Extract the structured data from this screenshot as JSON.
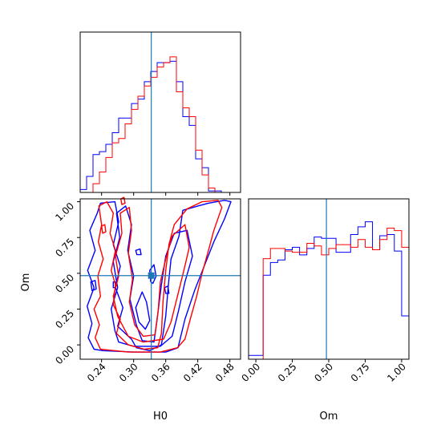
{
  "chart_data": {
    "type": "corner",
    "parameters": [
      "H0",
      "Om"
    ],
    "truth": {
      "H0": 0.333,
      "Om": 0.484
    },
    "colors": {
      "series_a": "#0000ff",
      "series_b": "#ff0000",
      "truth": "#1f77b4",
      "axes": "#000000"
    },
    "series": [
      {
        "color": "#0000ff",
        "hist_H0": {
          "edges": [
            0.2,
            0.212,
            0.224,
            0.236,
            0.248,
            0.26,
            0.272,
            0.284,
            0.296,
            0.308,
            0.32,
            0.332,
            0.344,
            0.356,
            0.368,
            0.38,
            0.392,
            0.404,
            0.416,
            0.428,
            0.44,
            0.452,
            0.464,
            0.476,
            0.488
          ],
          "counts": [
            2,
            11,
            26,
            28,
            33,
            41,
            51,
            51,
            61,
            64,
            76,
            83,
            89,
            89,
            90,
            76,
            52,
            46,
            23,
            17,
            1,
            1,
            0,
            0
          ]
        },
        "hist_Om": {
          "edges": [
            -0.05,
            0.0,
            0.05,
            0.1,
            0.15,
            0.2,
            0.25,
            0.3,
            0.35,
            0.4,
            0.45,
            0.5,
            0.55,
            0.6,
            0.65,
            0.7,
            0.75,
            0.8,
            0.85,
            0.9,
            0.95,
            1.0,
            1.05
          ],
          "counts": [
            3,
            3,
            66,
            76,
            78,
            86,
            88,
            82,
            87,
            96,
            95,
            95,
            84,
            84,
            98,
            104,
            108,
            86,
            97,
            98,
            85,
            34,
            0
          ]
        },
        "contours": [
          [
            [
              0.242,
              -0.04
            ],
            [
              0.226,
              -0.03
            ],
            [
              0.215,
              0.05
            ],
            [
              0.222,
              0.15
            ],
            [
              0.213,
              0.27
            ],
            [
              0.226,
              0.4
            ],
            [
              0.214,
              0.52
            ],
            [
              0.228,
              0.66
            ],
            [
              0.218,
              0.8
            ],
            [
              0.232,
              0.92
            ],
            [
              0.238,
              0.99
            ],
            [
              0.265,
              1.0
            ],
            [
              0.272,
              0.86
            ],
            [
              0.262,
              0.7
            ],
            [
              0.275,
              0.55
            ],
            [
              0.266,
              0.4
            ],
            [
              0.28,
              0.26
            ],
            [
              0.27,
              0.13
            ],
            [
              0.296,
              0.04
            ],
            [
              0.305,
              -0.02
            ],
            [
              0.33,
              -0.04
            ],
            [
              0.352,
              0.0
            ],
            [
              0.36,
              0.2
            ],
            [
              0.365,
              0.42
            ],
            [
              0.37,
              0.6
            ],
            [
              0.385,
              0.76
            ],
            [
              0.392,
              0.94
            ],
            [
              0.42,
              0.97
            ],
            [
              0.44,
              0.99
            ],
            [
              0.47,
              1.01
            ],
            [
              0.482,
              1.0
            ],
            [
              0.47,
              0.88
            ],
            [
              0.45,
              0.72
            ],
            [
              0.432,
              0.55
            ],
            [
              0.414,
              0.38
            ],
            [
              0.396,
              0.18
            ],
            [
              0.383,
              -0.02
            ],
            [
              0.36,
              -0.05
            ],
            [
              0.3,
              -0.05
            ],
            [
              0.242,
              -0.04
            ]
          ],
          [
            [
              0.265,
              0.1
            ],
            [
              0.258,
              0.25
            ],
            [
              0.27,
              0.4
            ],
            [
              0.262,
              0.58
            ],
            [
              0.274,
              0.75
            ],
            [
              0.268,
              0.92
            ],
            [
              0.285,
              0.97
            ],
            [
              0.296,
              0.84
            ],
            [
              0.289,
              0.66
            ],
            [
              0.3,
              0.48
            ],
            [
              0.293,
              0.32
            ],
            [
              0.305,
              0.14
            ],
            [
              0.316,
              0.03
            ],
            [
              0.338,
              0.02
            ],
            [
              0.344,
              0.18
            ],
            [
              0.352,
              0.42
            ],
            [
              0.36,
              0.62
            ],
            [
              0.376,
              0.78
            ],
            [
              0.4,
              0.8
            ],
            [
              0.41,
              0.62
            ],
            [
              0.396,
              0.44
            ],
            [
              0.384,
              0.24
            ],
            [
              0.372,
              0.06
            ],
            [
              0.35,
              -0.01
            ],
            [
              0.3,
              -0.01
            ],
            [
              0.272,
              0.02
            ],
            [
              0.265,
              0.1
            ]
          ],
          [
            [
              0.31,
              0.16
            ],
            [
              0.304,
              0.26
            ],
            [
              0.316,
              0.37
            ],
            [
              0.324,
              0.3
            ],
            [
              0.33,
              0.17
            ],
            [
              0.322,
              0.11
            ],
            [
              0.31,
              0.16
            ]
          ],
          [
            [
              0.332,
              0.44
            ],
            [
              0.33,
              0.52
            ],
            [
              0.338,
              0.56
            ],
            [
              0.342,
              0.48
            ],
            [
              0.336,
              0.43
            ],
            [
              0.332,
              0.44
            ]
          ],
          [
            [
              0.222,
              0.38
            ],
            [
              0.22,
              0.44
            ],
            [
              0.228,
              0.45
            ],
            [
              0.23,
              0.39
            ],
            [
              0.222,
              0.38
            ]
          ],
          [
            [
              0.306,
              0.63
            ],
            [
              0.304,
              0.66
            ],
            [
              0.312,
              0.67
            ],
            [
              0.314,
              0.63
            ],
            [
              0.306,
              0.63
            ]
          ],
          [
            [
              0.36,
              0.36
            ],
            [
              0.358,
              0.4
            ],
            [
              0.364,
              0.41
            ],
            [
              0.366,
              0.36
            ],
            [
              0.36,
              0.36
            ]
          ],
          [
            [
              0.262,
              0.4
            ],
            [
              0.262,
              0.44
            ],
            [
              0.266,
              0.44
            ],
            [
              0.266,
              0.4
            ],
            [
              0.262,
              0.4
            ]
          ]
        ]
      },
      {
        "color": "#ff0000",
        "hist_H0": {
          "edges": [
            0.212,
            0.224,
            0.236,
            0.248,
            0.26,
            0.272,
            0.284,
            0.296,
            0.308,
            0.32,
            0.332,
            0.344,
            0.356,
            0.368,
            0.38,
            0.392,
            0.404,
            0.416,
            0.428,
            0.44,
            0.452,
            0.464
          ],
          "counts": [
            0,
            6,
            14,
            24,
            34,
            37,
            47,
            57,
            66,
            73,
            79,
            86,
            89,
            93,
            69,
            58,
            52,
            29,
            12,
            3,
            0
          ]
        },
        "hist_Om": {
          "edges": [
            -0.05,
            0.0,
            0.05,
            0.1,
            0.15,
            0.2,
            0.25,
            0.3,
            0.35,
            0.4,
            0.45,
            0.5,
            0.55,
            0.6,
            0.65,
            0.7,
            0.75,
            0.8,
            0.85,
            0.9,
            0.95,
            1.0,
            1.05
          ],
          "counts": [
            0,
            0,
            79,
            87,
            87,
            85,
            84,
            84,
            91,
            89,
            82,
            87,
            90,
            90,
            88,
            94,
            88,
            86,
            94,
            103,
            101,
            88,
            0
          ]
        },
        "contours": [
          [
            [
              0.238,
              -0.03
            ],
            [
              0.228,
              0.05
            ],
            [
              0.236,
              0.14
            ],
            [
              0.226,
              0.25
            ],
            [
              0.238,
              0.34
            ],
            [
              0.233,
              0.48
            ],
            [
              0.243,
              0.6
            ],
            [
              0.234,
              0.72
            ],
            [
              0.24,
              0.84
            ],
            [
              0.235,
              0.97
            ],
            [
              0.25,
              1.0
            ],
            [
              0.262,
              0.92
            ],
            [
              0.256,
              0.78
            ],
            [
              0.266,
              0.66
            ],
            [
              0.258,
              0.52
            ],
            [
              0.266,
              0.42
            ],
            [
              0.262,
              0.28
            ],
            [
              0.275,
              0.18
            ],
            [
              0.268,
              0.08
            ],
            [
              0.29,
              0.0
            ],
            [
              0.32,
              -0.03
            ],
            [
              0.345,
              -0.02
            ],
            [
              0.352,
              0.08
            ],
            [
              0.355,
              0.3
            ],
            [
              0.36,
              0.52
            ],
            [
              0.366,
              0.7
            ],
            [
              0.376,
              0.84
            ],
            [
              0.4,
              0.95
            ],
            [
              0.428,
              1.0
            ],
            [
              0.458,
              1.01
            ],
            [
              0.465,
              0.96
            ],
            [
              0.45,
              0.8
            ],
            [
              0.44,
              0.66
            ],
            [
              0.428,
              0.5
            ],
            [
              0.418,
              0.34
            ],
            [
              0.406,
              0.18
            ],
            [
              0.396,
              0.04
            ],
            [
              0.382,
              -0.02
            ],
            [
              0.35,
              -0.05
            ],
            [
              0.29,
              -0.05
            ],
            [
              0.238,
              -0.03
            ]
          ],
          [
            [
              0.27,
              0.2
            ],
            [
              0.262,
              0.34
            ],
            [
              0.272,
              0.48
            ],
            [
              0.266,
              0.62
            ],
            [
              0.278,
              0.78
            ],
            [
              0.275,
              0.92
            ],
            [
              0.292,
              0.96
            ],
            [
              0.296,
              0.8
            ],
            [
              0.29,
              0.64
            ],
            [
              0.298,
              0.46
            ],
            [
              0.292,
              0.3
            ],
            [
              0.302,
              0.14
            ],
            [
              0.318,
              0.06
            ],
            [
              0.34,
              0.07
            ],
            [
              0.346,
              0.24
            ],
            [
              0.35,
              0.44
            ],
            [
              0.36,
              0.6
            ],
            [
              0.372,
              0.76
            ],
            [
              0.396,
              0.84
            ],
            [
              0.404,
              0.68
            ],
            [
              0.394,
              0.52
            ],
            [
              0.382,
              0.34
            ],
            [
              0.37,
              0.16
            ],
            [
              0.356,
              0.04
            ],
            [
              0.318,
              0.02
            ],
            [
              0.29,
              0.06
            ],
            [
              0.27,
              0.2
            ]
          ],
          [
            [
              0.242,
              0.78
            ],
            [
              0.24,
              0.83
            ],
            [
              0.246,
              0.84
            ],
            [
              0.248,
              0.79
            ],
            [
              0.242,
              0.78
            ]
          ],
          [
            [
              0.278,
              0.98
            ],
            [
              0.276,
              1.02
            ],
            [
              0.282,
              1.03
            ],
            [
              0.284,
              0.99
            ],
            [
              0.278,
              0.98
            ]
          ]
        ]
      }
    ],
    "tick_labels": {
      "H0": [
        "0.24",
        "0.30",
        "0.36",
        "0.42",
        "0.48"
      ],
      "Om_y": [
        "0.00",
        "0.25",
        "0.50",
        "0.75",
        "1.00"
      ],
      "Om_x": [
        "0.00",
        "0.25",
        "0.50",
        "0.75",
        "1.00"
      ]
    },
    "xlabel_H0": "H0",
    "xlabel_Om": "Om",
    "ylabel_Om": "Om",
    "ranges": {
      "H0": [
        0.2,
        0.5
      ],
      "Om": [
        -0.1,
        1.02
      ]
    }
  }
}
